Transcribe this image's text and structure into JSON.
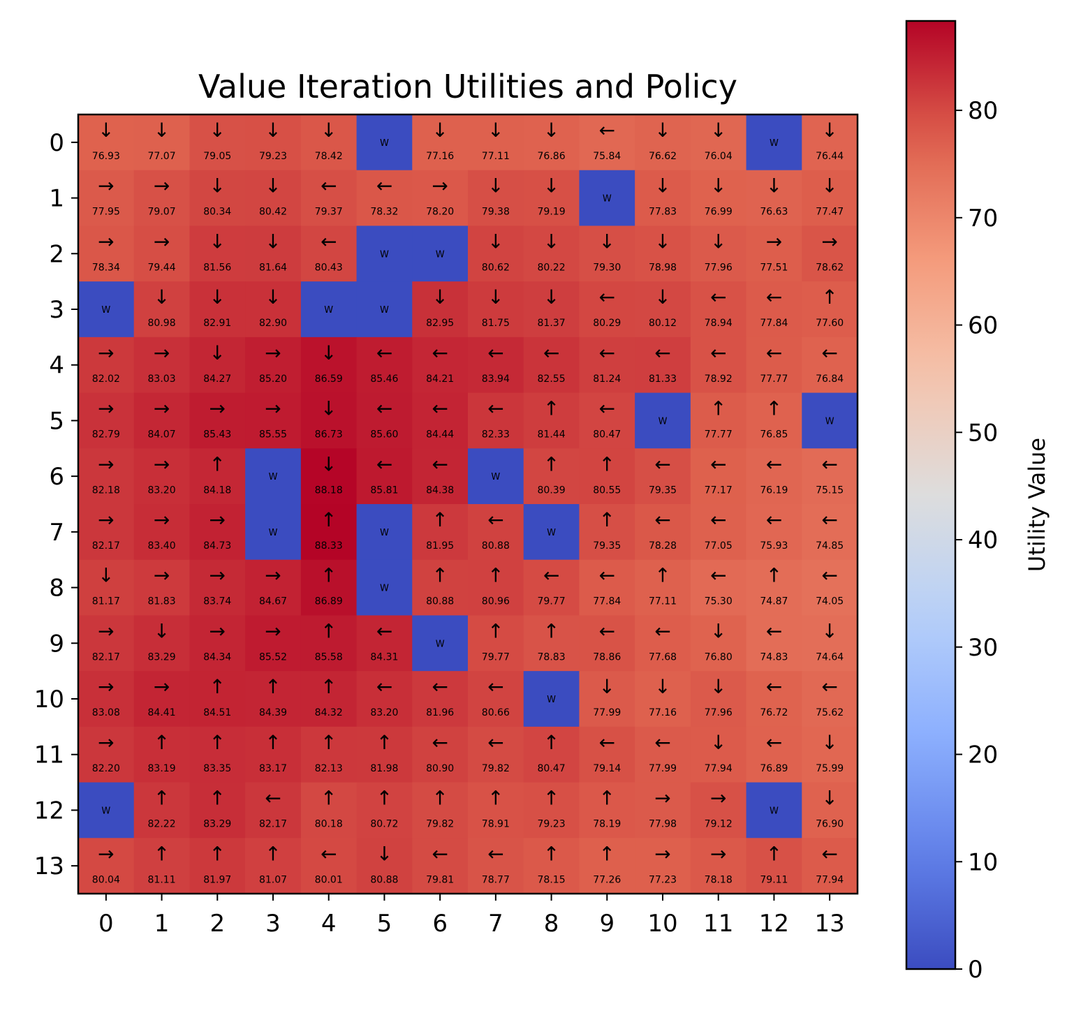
{
  "chart_data": {
    "type": "heatmap",
    "title": "Value Iteration Utilities and Policy",
    "xlabel": "",
    "ylabel": "",
    "x_ticks": [
      "0",
      "1",
      "2",
      "3",
      "4",
      "5",
      "6",
      "7",
      "8",
      "9",
      "10",
      "11",
      "12",
      "13"
    ],
    "y_ticks": [
      "0",
      "1",
      "2",
      "3",
      "4",
      "5",
      "6",
      "7",
      "8",
      "9",
      "10",
      "11",
      "12",
      "13"
    ],
    "colorbar": {
      "label": "Utility Value",
      "range": [
        0,
        88.33
      ],
      "ticks": [
        "0",
        "10",
        "20",
        "30",
        "40",
        "50",
        "60",
        "70",
        "80"
      ],
      "colormap": "coolwarm"
    },
    "wall_label": "W",
    "rows": [
      [
        "↓ 76.93",
        "↓ 77.07",
        "↓ 79.05",
        "↓ 79.23",
        "↓ 78.42",
        "W",
        "↓ 77.16",
        "↓ 77.11",
        "↓ 76.86",
        "← 75.84",
        "↓ 76.62",
        "↓ 76.04",
        "W",
        "↓ 76.44"
      ],
      [
        "→ 77.95",
        "→ 79.07",
        "↓ 80.34",
        "↓ 80.42",
        "← 79.37",
        "← 78.32",
        "→ 78.20",
        "↓ 79.38",
        "↓ 79.19",
        "W",
        "↓ 77.83",
        "↓ 76.99",
        "↓ 76.63",
        "↓ 77.47"
      ],
      [
        "→ 78.34",
        "→ 79.44",
        "↓ 81.56",
        "↓ 81.64",
        "← 80.43",
        "W",
        "W",
        "↓ 80.62",
        "↓ 80.22",
        "↓ 79.30",
        "↓ 78.98",
        "↓ 77.96",
        "→ 77.51",
        "→ 78.62"
      ],
      [
        "W",
        "↓ 80.98",
        "↓ 82.91",
        "↓ 82.90",
        "W",
        "W",
        "↓ 82.95",
        "↓ 81.75",
        "↓ 81.37",
        "← 80.29",
        "↓ 80.12",
        "← 78.94",
        "← 77.84",
        "↑ 77.60"
      ],
      [
        "→ 82.02",
        "→ 83.03",
        "↓ 84.27",
        "→ 85.20",
        "↓ 86.59",
        "← 85.46",
        "← 84.21",
        "← 83.94",
        "← 82.55",
        "← 81.24",
        "← 81.33",
        "← 78.92",
        "← 77.77",
        "← 76.84"
      ],
      [
        "→ 82.79",
        "→ 84.07",
        "→ 85.43",
        "→ 85.55",
        "↓ 86.73",
        "← 85.60",
        "← 84.44",
        "← 82.33",
        "↑ 81.44",
        "← 80.47",
        "W",
        "↑ 77.77",
        "↑ 76.85",
        "W"
      ],
      [
        "→ 82.18",
        "→ 83.20",
        "↑ 84.18",
        "W",
        "↓ 88.18",
        "← 85.81",
        "← 84.38",
        "W",
        "↑ 80.39",
        "↑ 80.55",
        "← 79.35",
        "← 77.17",
        "← 76.19",
        "← 75.15"
      ],
      [
        "→ 82.17",
        "→ 83.40",
        "→ 84.73",
        "W",
        "↑ 88.33",
        "W",
        "↑ 81.95",
        "← 80.88",
        "W",
        "↑ 79.35",
        "← 78.28",
        "← 77.05",
        "← 75.93",
        "← 74.85"
      ],
      [
        "↓ 81.17",
        "→ 81.83",
        "→ 83.74",
        "→ 84.67",
        "↑ 86.89",
        "W",
        "↑ 80.88",
        "↑ 80.96",
        "← 79.77",
        "← 77.84",
        "↑ 77.11",
        "← 75.30",
        "↑ 74.87",
        "← 74.05"
      ],
      [
        "→ 82.17",
        "↓ 83.29",
        "→ 84.34",
        "→ 85.52",
        "↑ 85.58",
        "← 84.31",
        "W",
        "↑ 79.77",
        "↑ 78.83",
        "← 78.86",
        "← 77.68",
        "↓ 76.80",
        "← 74.83",
        "↓ 74.64"
      ],
      [
        "→ 83.08",
        "→ 84.41",
        "↑ 84.51",
        "↑ 84.39",
        "↑ 84.32",
        "← 83.20",
        "← 81.96",
        "← 80.66",
        "W",
        "↓ 77.99",
        "↓ 77.16",
        "↓ 77.96",
        "← 76.72",
        "← 75.62"
      ],
      [
        "→ 82.20",
        "↑ 83.19",
        "↑ 83.35",
        "↑ 83.17",
        "↑ 82.13",
        "↑ 81.98",
        "← 80.90",
        "← 79.82",
        "↑ 80.47",
        "← 79.14",
        "← 77.99",
        "↓ 77.94",
        "← 76.89",
        "↓ 75.99"
      ],
      [
        "W",
        "↑ 82.22",
        "↑ 83.29",
        "← 82.17",
        "↑ 80.18",
        "↑ 80.72",
        "↑ 79.82",
        "↑ 78.91",
        "↑ 79.23",
        "↑ 78.19",
        "→ 77.98",
        "→ 79.12",
        "W",
        "↓ 76.90"
      ],
      [
        "→ 80.04",
        "↑ 81.11",
        "↑ 81.97",
        "↑ 81.07",
        "← 80.01",
        "↓ 80.88",
        "← 79.81",
        "← 78.77",
        "↑ 78.15",
        "↑ 77.26",
        "→ 77.23",
        "→ 78.18",
        "↑ 79.11",
        "← 77.94"
      ]
    ]
  }
}
